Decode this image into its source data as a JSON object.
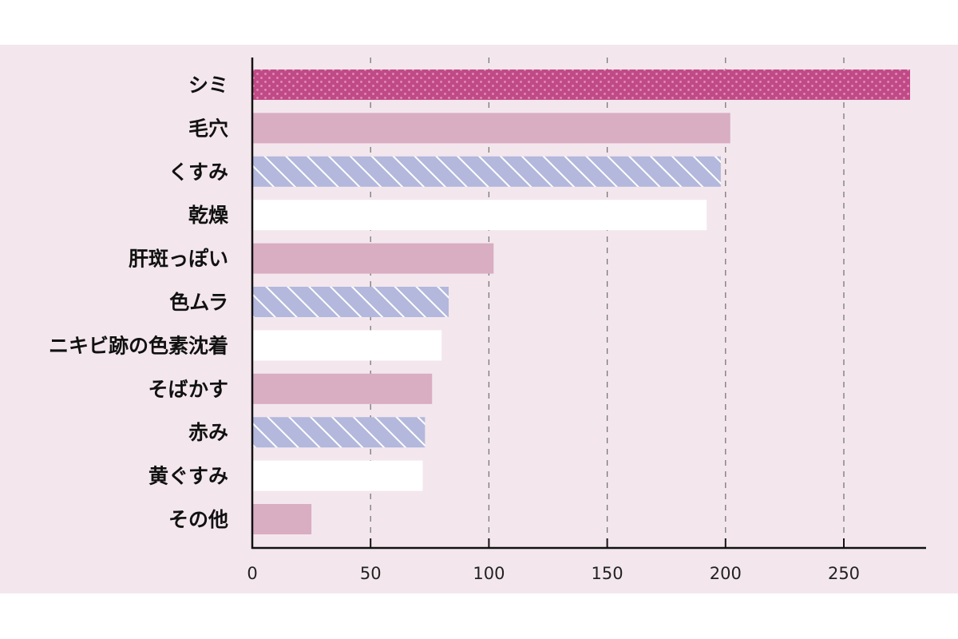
{
  "chart_data": {
    "type": "bar",
    "orientation": "horizontal",
    "title": "",
    "xlabel": "",
    "ylabel": "",
    "categories": [
      "シミ",
      "毛穴",
      "くすみ",
      "乾燥",
      "肝斑っぽい",
      "色ムラ",
      "ニキビ跡の色素沈着",
      "そばかす",
      "赤み",
      "黄ぐすみ",
      "その他"
    ],
    "values": [
      278,
      202,
      198,
      192,
      102,
      83,
      80,
      76,
      73,
      72,
      25
    ],
    "styles": [
      "dots",
      "solid",
      "stripes",
      "white",
      "solid",
      "stripes",
      "white",
      "solid",
      "stripes",
      "white",
      "solid"
    ],
    "xlim": [
      0,
      285
    ],
    "xticks": [
      0,
      50,
      100,
      150,
      200,
      250
    ],
    "xtick_labels": [
      "0",
      "50",
      "100",
      "150",
      "200",
      "250"
    ],
    "grid": "vertical dashed",
    "colors": {
      "dots": "#c04a86",
      "dot_fill": "#e58fbd",
      "solid": "#d9adc2",
      "stripes": "#b3b8dc",
      "white": "#ffffff",
      "background": "#f3e7ed"
    }
  }
}
